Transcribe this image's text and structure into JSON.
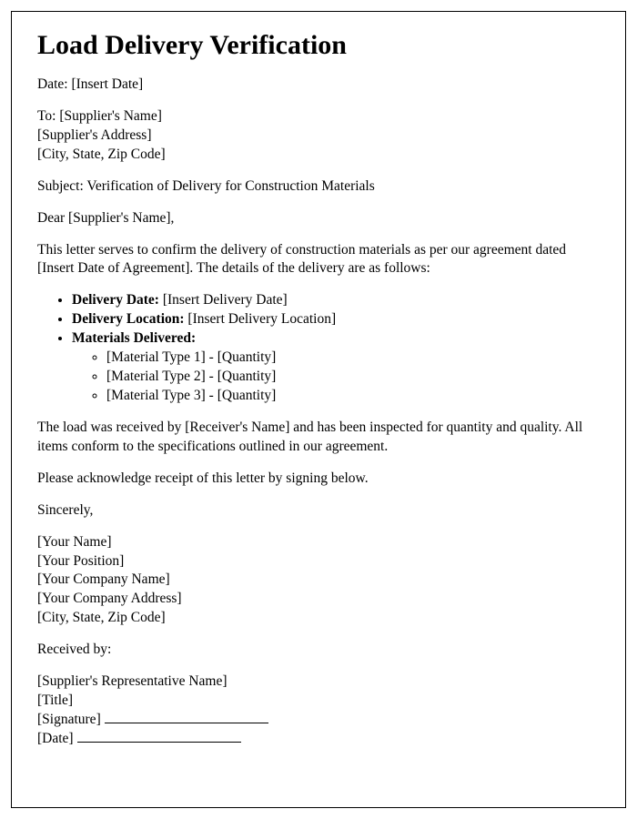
{
  "title": "Load Delivery Verification",
  "date_label": "Date: ",
  "date_value": "[Insert Date]",
  "to_label": "To: ",
  "supplier_name": "[Supplier's Name]",
  "supplier_address": "[Supplier's Address]",
  "supplier_csz": "[City, State, Zip Code]",
  "subject_label": "Subject: ",
  "subject_text": "Verification of Delivery for Construction Materials",
  "salutation": "Dear [Supplier's Name],",
  "intro": "This letter serves to confirm the delivery of construction materials as per our agreement dated [Insert Date of Agreement]. The details of the delivery are as follows:",
  "bullets": {
    "delivery_date_label": "Delivery Date:",
    "delivery_date_value": " [Insert Delivery Date]",
    "delivery_location_label": "Delivery Location:",
    "delivery_location_value": " [Insert Delivery Location]",
    "materials_label": "Materials Delivered:",
    "materials": [
      "[Material Type 1] - [Quantity]",
      "[Material Type 2] - [Quantity]",
      "[Material Type 3] - [Quantity]"
    ]
  },
  "received_para": "The load was received by [Receiver's Name] and has been inspected for quantity and quality. All items conform to the specifications outlined in our agreement.",
  "ack_para": "Please acknowledge receipt of this letter by signing below.",
  "closing": "Sincerely,",
  "sender": {
    "name": "[Your Name]",
    "position": "[Your Position]",
    "company": "[Your Company Name]",
    "address": "[Your Company Address]",
    "csz": "[City, State, Zip Code]"
  },
  "received_by_label": "Received by:",
  "receiver": {
    "rep_name": "[Supplier's Representative Name]",
    "title": "[Title]",
    "signature_label": "[Signature]",
    "date_label": "[Date]"
  }
}
